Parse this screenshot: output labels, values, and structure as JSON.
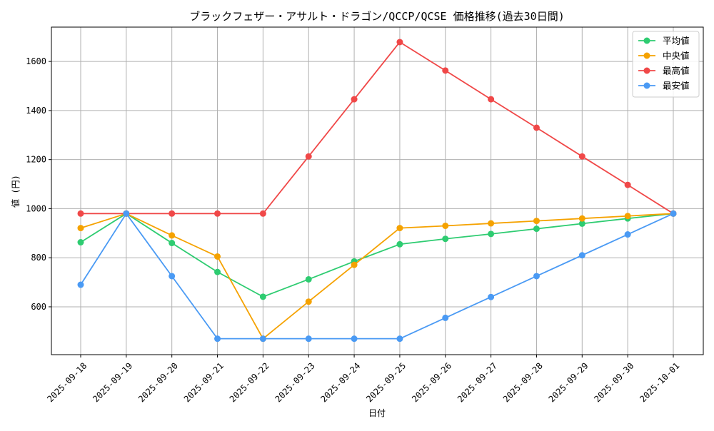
{
  "chart_data": {
    "type": "line",
    "title": "ブラックフェザー・アサルト・ドラゴン/QCCP/QCSE 価格推移(過去30日間)",
    "xlabel": "日付",
    "ylabel": "値 (円)",
    "categories": [
      "2025-09-18",
      "2025-09-19",
      "2025-09-20",
      "2025-09-21",
      "2025-09-22",
      "2025-09-23",
      "2025-09-24",
      "2025-09-25",
      "2025-09-26",
      "2025-09-27",
      "2025-09-28",
      "2025-09-29",
      "2025-09-30",
      "2025-10-01"
    ],
    "ylim": [
      405,
      1740
    ],
    "yticks": [
      600,
      800,
      1000,
      1200,
      1400,
      1600
    ],
    "grid": true,
    "legend_position": "top-right",
    "series": [
      {
        "name": "平均値",
        "color": "#2ecc71",
        "values": [
          863,
          980,
          860,
          742,
          641,
          712,
          785,
          855,
          877,
          897,
          918,
          939,
          960,
          980
        ]
      },
      {
        "name": "中央値",
        "color": "#f5a200",
        "values": [
          921,
          980,
          891,
          805,
          470,
          621,
          771,
          921,
          930,
          940,
          950,
          960,
          970,
          980
        ]
      },
      {
        "name": "最高値",
        "color": "#f04848",
        "values": [
          980,
          980,
          980,
          980,
          980,
          1213,
          1446,
          1679,
          1563,
          1446,
          1330,
          1213,
          1097,
          980
        ]
      },
      {
        "name": "最安値",
        "color": "#4a9af4",
        "values": [
          690,
          980,
          725,
          470,
          470,
          470,
          470,
          470,
          555,
          640,
          725,
          810,
          895,
          980
        ]
      }
    ]
  }
}
